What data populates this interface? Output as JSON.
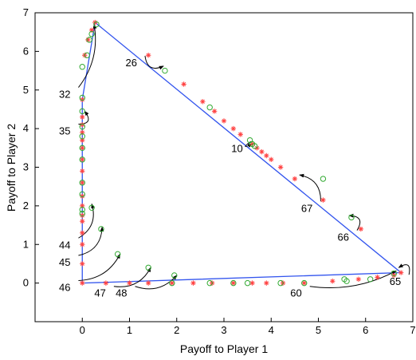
{
  "chart_data": {
    "type": "scatter",
    "xlabel": "Payoff to Player 1",
    "ylabel": "Payoff to Player 2",
    "xlim": [
      -1,
      7
    ],
    "ylim": [
      -1,
      7
    ],
    "x_ticks": [
      0,
      1,
      2,
      3,
      4,
      5,
      6,
      7
    ],
    "y_ticks": [
      0,
      1,
      2,
      3,
      4,
      5,
      6,
      7
    ],
    "grid": false,
    "frontier": {
      "color": "#3355ee",
      "x": [
        0,
        0,
        0.27,
        6.75,
        0
      ],
      "y": [
        0,
        4.75,
        6.75,
        0.27,
        0
      ]
    },
    "series": [
      {
        "marker": "star",
        "color": "#ff4444",
        "x": [
          0,
          0,
          0,
          0,
          0,
          0,
          0,
          0,
          0,
          0,
          0,
          0,
          0,
          0,
          0,
          0,
          0,
          0.05,
          0.12,
          0.2,
          0.27,
          1.4,
          2.15,
          2.55,
          2.8,
          3.0,
          3.2,
          3.35,
          3.6,
          3.7,
          3.8,
          3.9,
          4.0,
          4.2,
          4.5,
          5.1,
          5.9,
          6.75,
          0.5,
          1.0,
          1.4,
          1.9,
          2.35,
          2.75,
          3.2,
          3.6,
          3.9,
          4.25,
          4.7,
          5.3,
          5.85,
          6.25,
          6.6
        ],
        "y": [
          0,
          0.5,
          1.0,
          1.3,
          1.6,
          1.75,
          2.0,
          2.25,
          2.6,
          2.9,
          3.2,
          3.5,
          3.7,
          3.9,
          4.1,
          4.3,
          4.75,
          5.9,
          6.3,
          6.55,
          6.75,
          5.9,
          5.15,
          4.7,
          4.45,
          4.2,
          4.0,
          3.85,
          3.6,
          3.5,
          3.4,
          3.3,
          3.2,
          3.0,
          2.7,
          2.15,
          1.4,
          0.27,
          0,
          0,
          0,
          0,
          0,
          0,
          0,
          0,
          0,
          0,
          0,
          0.05,
          0.1,
          0.15,
          0.2
        ]
      },
      {
        "marker": "circle",
        "color": "#33aa33",
        "x": [
          0,
          0,
          0,
          0,
          0,
          0,
          0,
          0,
          0,
          0,
          0,
          0.1,
          0.15,
          0.2,
          0.3,
          0.2,
          0.4,
          0.75,
          1.4,
          1.95,
          1.75,
          2.7,
          3.55,
          3.6,
          3.65,
          5.1,
          5.55,
          5.6,
          5.7,
          6.1,
          6.6,
          1.9,
          2.7,
          3.2,
          3.5,
          4.2,
          4.7
        ],
        "y": [
          1.8,
          1.9,
          2.3,
          2.6,
          3.2,
          3.5,
          3.8,
          4.05,
          4.45,
          4.8,
          5.6,
          5.9,
          6.3,
          6.45,
          6.7,
          1.95,
          1.4,
          0.75,
          0.4,
          0.2,
          5.5,
          4.55,
          3.7,
          3.6,
          3.55,
          2.7,
          0.1,
          0.05,
          1.7,
          0.1,
          0.25,
          0,
          0,
          0,
          0,
          0,
          0
        ]
      }
    ],
    "annotations": [
      {
        "label": "26",
        "x": 1.16,
        "y": 5.72,
        "tx": 1.72,
        "ty": 5.62
      },
      {
        "label": "32",
        "x": -0.25,
        "y": 4.9,
        "tx": 0.25,
        "ty": 6.7
      },
      {
        "label": "35",
        "x": -0.25,
        "y": 3.95,
        "tx": 0.05,
        "ty": 4.45
      },
      {
        "label": "10",
        "x": 3.4,
        "y": 3.5,
        "tx": 3.6,
        "ty": 3.6
      },
      {
        "label": "67",
        "x": 4.88,
        "y": 1.95,
        "tx": 4.6,
        "ty": 2.8
      },
      {
        "label": "66",
        "x": 5.65,
        "y": 1.2,
        "tx": 5.65,
        "ty": 1.75
      },
      {
        "label": "44",
        "x": -0.25,
        "y": 1.0,
        "tx": 0.2,
        "ty": 2.05
      },
      {
        "label": "45",
        "x": -0.25,
        "y": 0.55,
        "tx": 0.42,
        "ty": 1.45
      },
      {
        "label": "46",
        "x": -0.25,
        "y": -0.1,
        "tx": 0.8,
        "ty": 0.75
      },
      {
        "label": "47",
        "x": 0.5,
        "y": -0.25,
        "tx": 1.45,
        "ty": 0.4
      },
      {
        "label": "48",
        "x": 0.95,
        "y": -0.25,
        "tx": 2.0,
        "ty": 0.2
      },
      {
        "label": "60",
        "x": 4.65,
        "y": -0.25,
        "tx": 6.65,
        "ty": 0.32
      },
      {
        "label": "65",
        "x": 6.75,
        "y": 0.05,
        "tx": 6.7,
        "ty": 0.4
      }
    ]
  }
}
